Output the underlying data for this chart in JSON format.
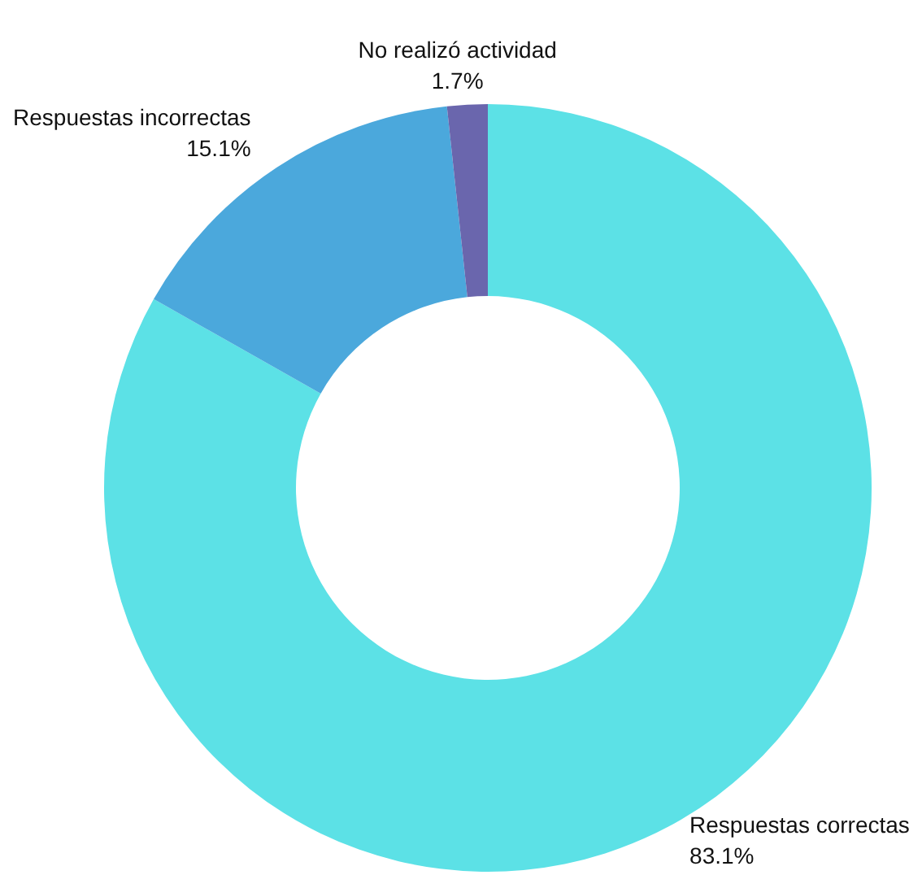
{
  "chart_data": {
    "type": "donut",
    "categories": [
      "Respuestas correctas",
      "Respuestas incorrectas",
      "No realizó actividad"
    ],
    "values": [
      83.1,
      15.1,
      1.7
    ],
    "value_labels": [
      "83.1%",
      "15.1%",
      "1.7%"
    ],
    "colors": [
      "#5ce1e6",
      "#4ba8dc",
      "#6a66ad"
    ],
    "legend": false
  }
}
